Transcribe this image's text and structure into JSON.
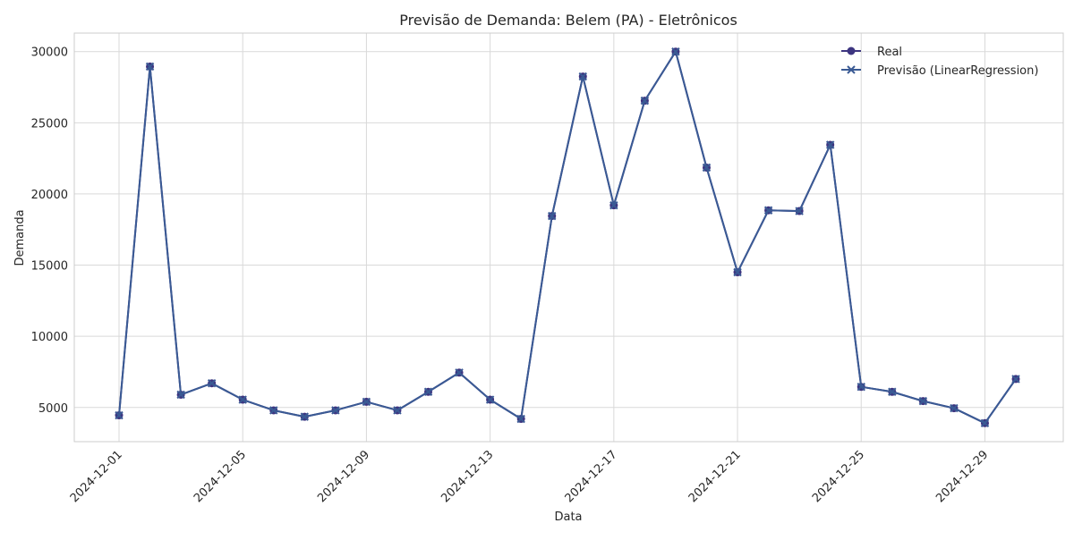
{
  "chart_data": {
    "type": "line",
    "title": "Previsão de Demanda: Belem (PA) - Eletrônicos",
    "xlabel": "Data",
    "ylabel": "Demanda",
    "x": [
      "2024-12-01",
      "2024-12-02",
      "2024-12-03",
      "2024-12-04",
      "2024-12-05",
      "2024-12-06",
      "2024-12-07",
      "2024-12-08",
      "2024-12-09",
      "2024-12-10",
      "2024-12-11",
      "2024-12-12",
      "2024-12-13",
      "2024-12-14",
      "2024-12-15",
      "2024-12-16",
      "2024-12-17",
      "2024-12-18",
      "2024-12-19",
      "2024-12-20",
      "2024-12-21",
      "2024-12-22",
      "2024-12-23",
      "2024-12-24",
      "2024-12-25",
      "2024-12-26",
      "2024-12-27",
      "2024-12-28",
      "2024-12-29",
      "2024-12-30"
    ],
    "x_ticks": [
      "2024-12-01",
      "2024-12-05",
      "2024-12-09",
      "2024-12-13",
      "2024-12-17",
      "2024-12-21",
      "2024-12-25",
      "2024-12-29"
    ],
    "y_ticks": [
      5000,
      10000,
      15000,
      20000,
      25000,
      30000
    ],
    "ylim": [
      2600,
      31300
    ],
    "grid": true,
    "legend_position": "top-right",
    "series": [
      {
        "name": "Real",
        "marker": "circle",
        "color": "#3d3580",
        "values": [
          4450,
          28950,
          5900,
          6700,
          5550,
          4800,
          4350,
          4800,
          5400,
          4800,
          6100,
          7450,
          5550,
          4200,
          18450,
          28250,
          19200,
          26550,
          30000,
          21850,
          14500,
          18850,
          18800,
          23450,
          6450,
          6100,
          5450,
          4950,
          3900,
          7000
        ]
      },
      {
        "name": "Previsão (LinearRegression)",
        "marker": "x",
        "color": "#3a5a94",
        "values": [
          4450,
          28950,
          5900,
          6700,
          5550,
          4800,
          4350,
          4800,
          5400,
          4800,
          6100,
          7450,
          5550,
          4200,
          18450,
          28250,
          19200,
          26550,
          30000,
          21850,
          14500,
          18850,
          18800,
          23450,
          6450,
          6100,
          5450,
          4950,
          3900,
          7000
        ]
      }
    ]
  }
}
